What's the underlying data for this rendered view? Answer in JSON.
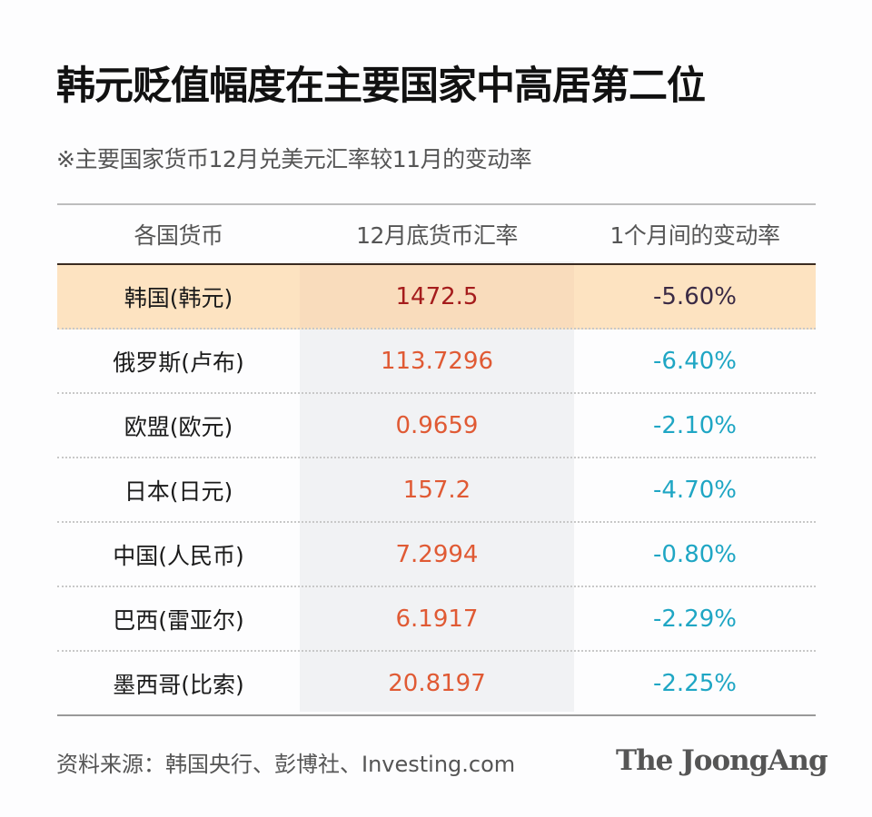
{
  "title": "韩元贬值幅度在主要国家中高居第二位",
  "subtitle": "※主要国家货币12月兑美元汇率较11月的变动率",
  "table": {
    "headers": [
      "各国货币",
      "12月底货币汇率",
      "1个月间的变动率"
    ],
    "rows": [
      {
        "currency": "韩国(韩元)",
        "rate": "1472.5",
        "change": "-5.60%",
        "highlight": true
      },
      {
        "currency": "俄罗斯(卢布)",
        "rate": "113.7296",
        "change": "-6.40%"
      },
      {
        "currency": "欧盟(欧元)",
        "rate": "0.9659",
        "change": "-2.10%"
      },
      {
        "currency": "日本(日元)",
        "rate": "157.2",
        "change": "-4.70%"
      },
      {
        "currency": "中国(人民币)",
        "rate": "7.2994",
        "change": "-0.80%"
      },
      {
        "currency": "巴西(雷亚尔)",
        "rate": "6.1917",
        "change": "-2.29%"
      },
      {
        "currency": "墨西哥(比索)",
        "rate": "20.8197",
        "change": "-2.25%"
      }
    ]
  },
  "footer": {
    "source": "资料来源：韩国央行、彭博社、Investing.com",
    "logo": "The JoongAng"
  },
  "colors": {
    "highlight_row": "#fde3c1",
    "rate_text": "#e05a34",
    "rate_text_highlight": "#a51c1c",
    "change_text": "#1fa6c4"
  },
  "chart_data": {
    "type": "table",
    "title": "韩元贬值幅度在主要国家中高居第二位",
    "subtitle": "※主要国家货币12月兑美元汇率较11月的变动率",
    "columns": [
      "各国货币",
      "12月底货币汇率",
      "1个月间的变动率"
    ],
    "categories": [
      "韩国(韩元)",
      "俄罗斯(卢布)",
      "欧盟(欧元)",
      "日本(日元)",
      "中国(人民币)",
      "巴西(雷亚尔)",
      "墨西哥(比索)"
    ],
    "series": [
      {
        "name": "12月底货币汇率",
        "values": [
          1472.5,
          113.7296,
          0.9659,
          157.2,
          7.2994,
          6.1917,
          20.8197
        ]
      },
      {
        "name": "1个月间的变动率(%)",
        "values": [
          -5.6,
          -6.4,
          -2.1,
          -4.7,
          -0.8,
          -2.29,
          -2.25
        ]
      }
    ],
    "highlighted_row": "韩国(韩元)",
    "source": "资料来源：韩国央行、彭博社、Investing.com"
  }
}
